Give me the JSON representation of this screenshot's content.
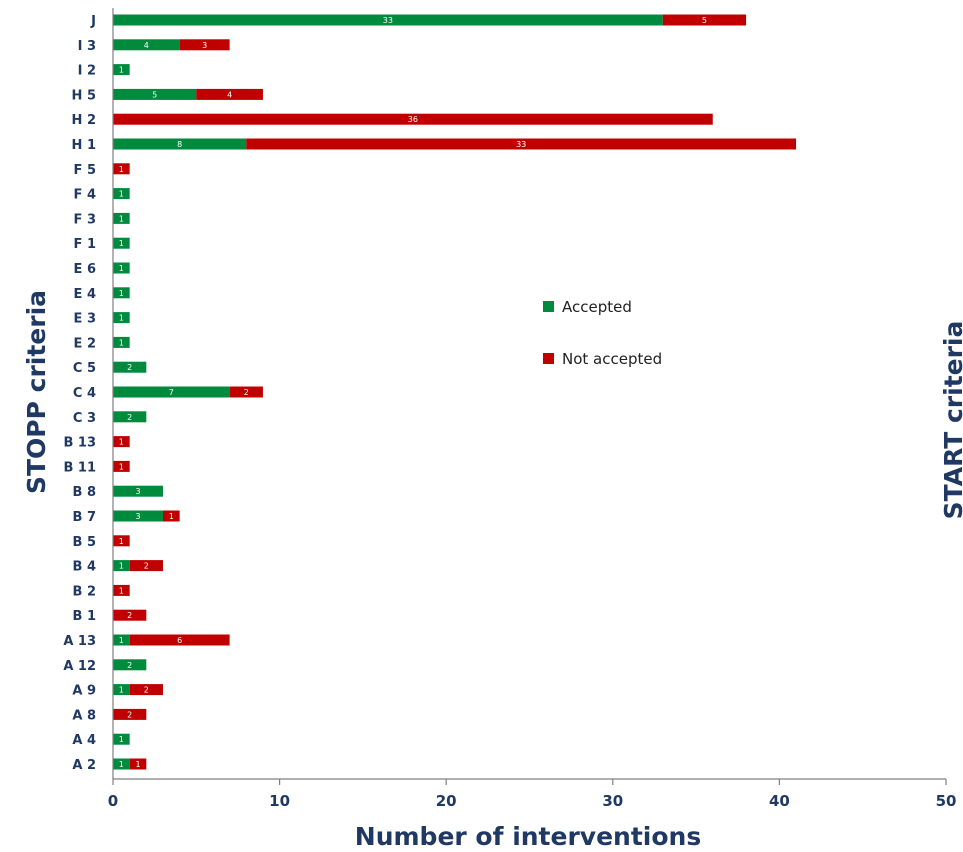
{
  "chart_data": {
    "type": "bar",
    "orientation": "horizontal",
    "stacked": true,
    "categories": [
      "J",
      "I 3",
      "I 2",
      "H 5",
      "H 2",
      "H 1",
      "F 5",
      "F 4",
      "F 3",
      "F 1",
      "E 6",
      "E 4",
      "E 3",
      "E 2",
      "C 5",
      "C 4",
      "C 3",
      "B 13",
      "B 11",
      "B 8",
      "B 7",
      "B 5",
      "B 4",
      "B 2",
      "B 1",
      "A 13",
      "A 12",
      "A 9",
      "A 8",
      "A 4",
      "A 2"
    ],
    "series": [
      {
        "name": "Accepted",
        "color": "#008a3e",
        "values": [
          33,
          4,
          1,
          5,
          0,
          8,
          0,
          1,
          1,
          1,
          1,
          1,
          1,
          1,
          2,
          7,
          2,
          0,
          0,
          3,
          3,
          0,
          1,
          0,
          0,
          1,
          2,
          1,
          0,
          1,
          1
        ],
        "labels": [
          "33",
          "4",
          "1",
          "5",
          "",
          "8",
          "",
          "1",
          "1",
          "1",
          "1",
          "1",
          "1",
          "1",
          "2",
          "7",
          "2",
          "",
          "",
          "3",
          "3",
          "",
          "1",
          "",
          "",
          "1",
          "2",
          "1",
          "",
          "1",
          "1"
        ]
      },
      {
        "name": "Not accepted",
        "color": "#c00000",
        "values": [
          5,
          3,
          0,
          4,
          36,
          33,
          1,
          0,
          0,
          0,
          0,
          0,
          0,
          0,
          0,
          2,
          0,
          1,
          1,
          0,
          1,
          1,
          2,
          1,
          2,
          6,
          0,
          2,
          2,
          0,
          1
        ],
        "labels": [
          "5",
          "3",
          "",
          "4",
          "36",
          "33",
          "1",
          "",
          "",
          "",
          "",
          "",
          "",
          "",
          "",
          "2",
          "",
          "1",
          "1",
          "",
          "1",
          "1",
          "2",
          "1",
          "2",
          "6",
          "",
          "2",
          "2",
          "",
          "1"
        ]
      }
    ],
    "xlabel": "Number of interventions",
    "ylabel": "STOPP criteria",
    "ylabel_right": "START criteria",
    "xlim": [
      0,
      50
    ],
    "xticks": [
      "0",
      "10",
      "20",
      "30",
      "40",
      "50"
    ],
    "legend_position": "center-right",
    "grid": false
  }
}
